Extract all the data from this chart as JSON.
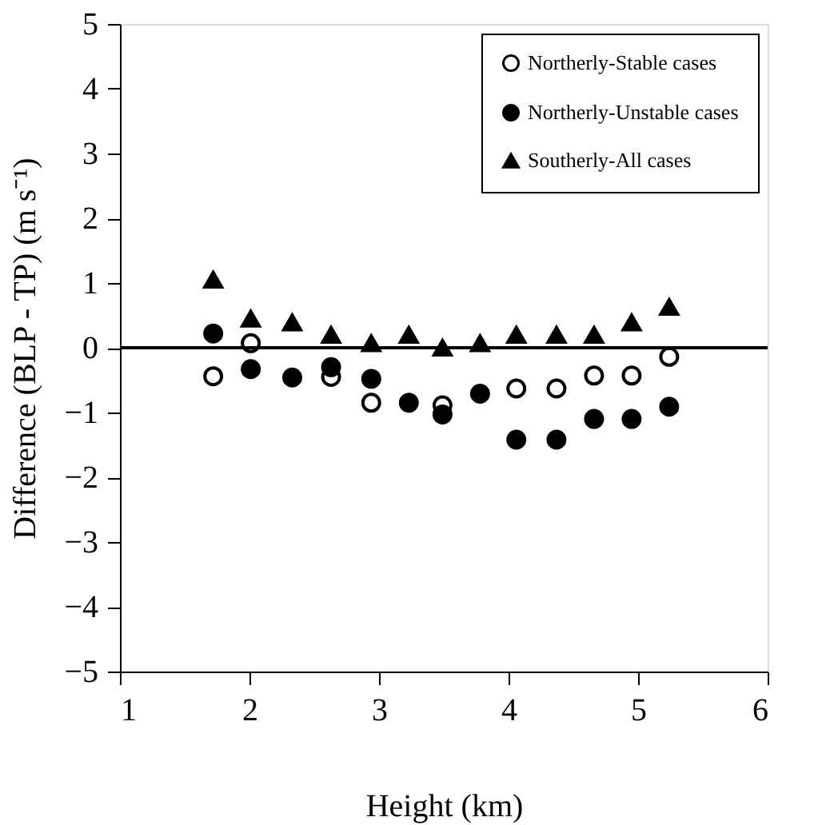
{
  "chart_data": {
    "type": "scatter",
    "xlabel": "Height (km)",
    "ylabel": "Difference (BLP - TP)  (m s⁻¹)",
    "x": [
      1.72,
      2.01,
      2.33,
      2.63,
      2.94,
      3.23,
      3.49,
      3.78,
      4.06,
      4.37,
      4.66,
      4.95,
      5.24
    ],
    "series": [
      {
        "name": "Northerly-Stable cases",
        "color": "#ffffff",
        "marker": "circle",
        "values": [
          -0.44,
          0.07,
          null,
          -0.45,
          -0.85,
          null,
          -0.89,
          null,
          -0.63,
          -0.63,
          -0.43,
          -0.43,
          -0.14
        ]
      },
      {
        "name": "Northerly-Unstable cases",
        "color": "#000000",
        "marker": "circle",
        "values": [
          0.22,
          -0.33,
          -0.46,
          -0.3,
          -0.48,
          -0.85,
          -1.03,
          -0.71,
          -1.42,
          -1.42,
          -1.1,
          -1.1,
          -0.91
        ]
      },
      {
        "name": "Southerly-All cases",
        "color": "#000000",
        "marker": "triangle",
        "values": [
          1.05,
          0.45,
          0.39,
          0.2,
          0.07,
          0.2,
          0.0,
          0.07,
          0.2,
          0.2,
          0.2,
          0.39,
          0.63
        ]
      }
    ],
    "xlim": [
      1,
      6
    ],
    "xticks": [
      1,
      2,
      3,
      4,
      5,
      6
    ],
    "ylim": [
      -5,
      5
    ],
    "yticks": [
      -5,
      -4,
      -3,
      -2,
      -1,
      0,
      1,
      2,
      3,
      4,
      5
    ],
    "ref_lines": [
      {
        "axis": "y",
        "value": 0,
        "label": null,
        "color": "#000000"
      }
    ],
    "grid": false,
    "legend": "top right"
  }
}
